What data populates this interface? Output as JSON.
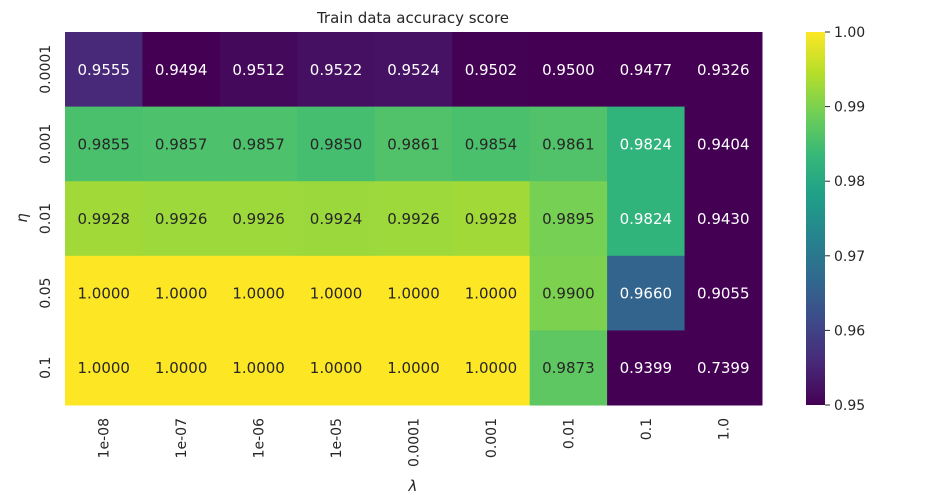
{
  "chart_data": {
    "type": "heatmap",
    "title": "Train data accuracy score",
    "xlabel": "λ",
    "ylabel": "η",
    "x_categories": [
      "1e-08",
      "1e-07",
      "1e-06",
      "1e-05",
      "0.0001",
      "0.001",
      "0.01",
      "0.1",
      "1.0"
    ],
    "y_categories": [
      "0.0001",
      "0.001",
      "0.01",
      "0.05",
      "0.1"
    ],
    "values": [
      [
        0.9555,
        0.9494,
        0.9512,
        0.9522,
        0.9524,
        0.9502,
        0.95,
        0.9477,
        0.9326
      ],
      [
        0.9855,
        0.9857,
        0.9857,
        0.985,
        0.9861,
        0.9854,
        0.9861,
        0.9824,
        0.9404
      ],
      [
        0.9928,
        0.9926,
        0.9926,
        0.9924,
        0.9926,
        0.9928,
        0.9895,
        0.9824,
        0.943
      ],
      [
        1.0,
        1.0,
        1.0,
        1.0,
        1.0,
        1.0,
        0.99,
        0.966,
        0.9055
      ],
      [
        1.0,
        1.0,
        1.0,
        1.0,
        1.0,
        1.0,
        0.9873,
        0.9399,
        0.7399
      ]
    ],
    "value_format_decimals": 4,
    "colormap": "viridis",
    "vmin": 0.95,
    "vmax": 1.0,
    "colorbar_ticks": [
      "0.95",
      "0.96",
      "0.97",
      "0.98",
      "0.99",
      "1.00"
    ],
    "colors": {
      "viridis_stops": [
        "#440154",
        "#482878",
        "#3e4989",
        "#31688e",
        "#26828e",
        "#1f9e89",
        "#35b779",
        "#6ece58",
        "#b5de2b",
        "#fde725"
      ],
      "dark_text": "#262626",
      "light_text": "#ffffff",
      "axis_text": "#262626"
    }
  }
}
